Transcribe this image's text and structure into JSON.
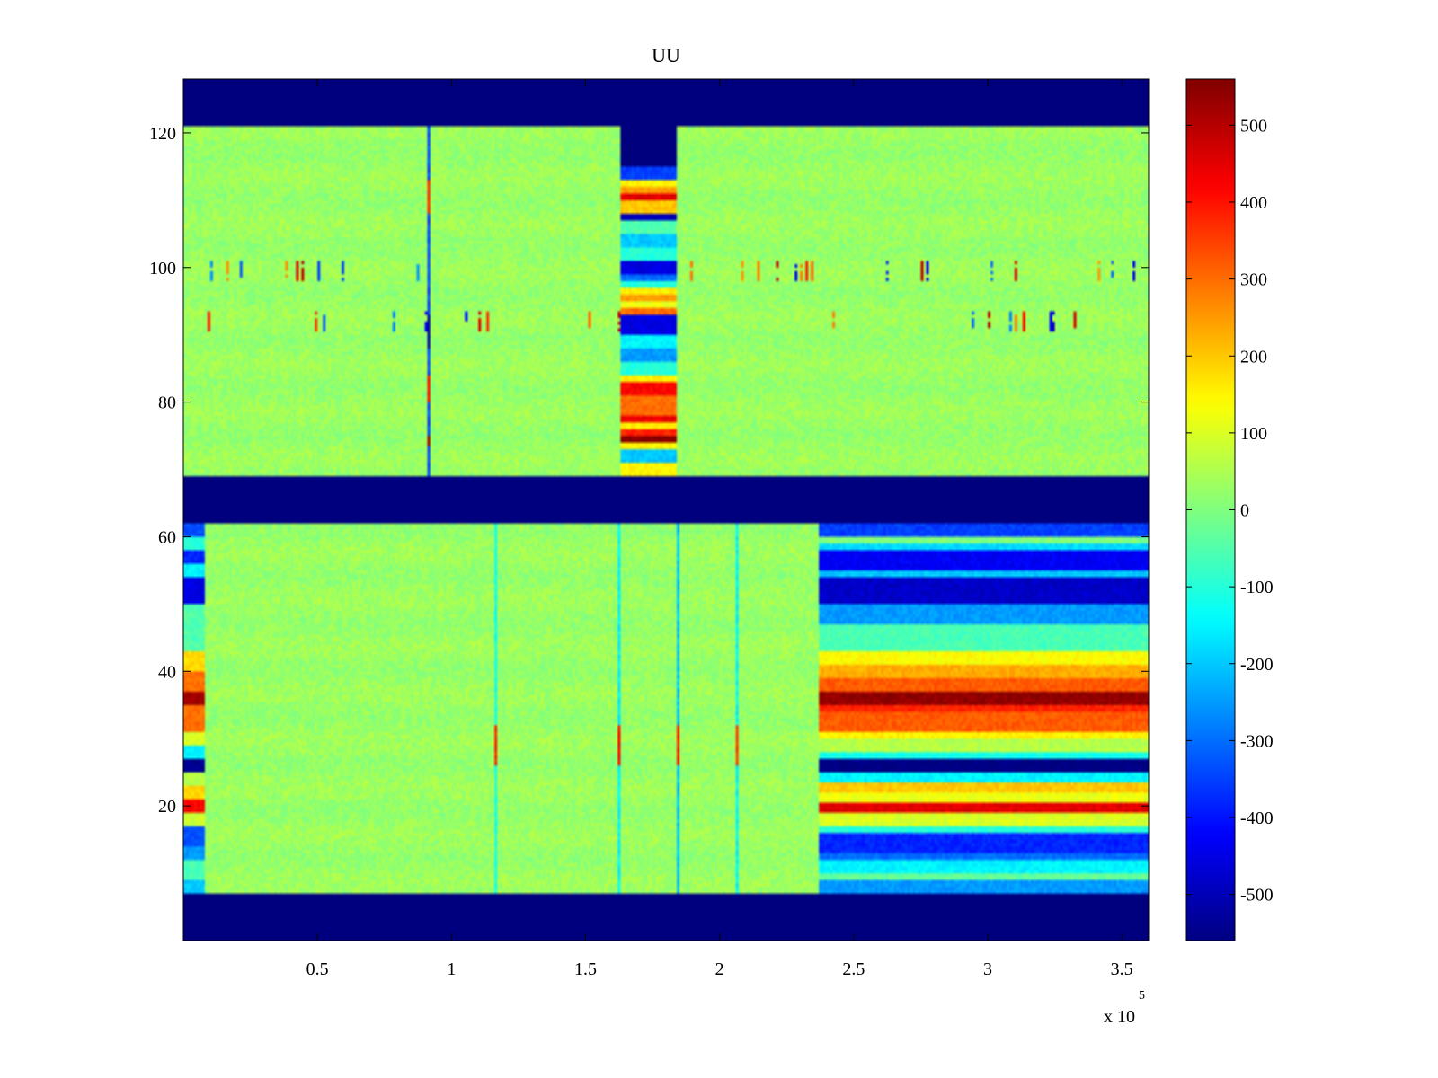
{
  "chart_data": {
    "type": "heatmap",
    "title": "UU",
    "xlabel": "",
    "ylabel": "",
    "x_multiplier_label": "x 10",
    "x_multiplier_exponent": "5",
    "xlim": [
      0,
      360000
    ],
    "ylim": [
      0,
      128
    ],
    "x_ticks": [
      {
        "value": 50000,
        "label": "0.5"
      },
      {
        "value": 100000,
        "label": "1"
      },
      {
        "value": 150000,
        "label": "1.5"
      },
      {
        "value": 200000,
        "label": "2"
      },
      {
        "value": 250000,
        "label": "2.5"
      },
      {
        "value": 300000,
        "label": "3"
      },
      {
        "value": 350000,
        "label": "3.5"
      }
    ],
    "y_ticks": [
      {
        "value": 20,
        "label": "20"
      },
      {
        "value": 40,
        "label": "40"
      },
      {
        "value": 60,
        "label": "60"
      },
      {
        "value": 80,
        "label": "80"
      },
      {
        "value": 100,
        "label": "100"
      },
      {
        "value": 120,
        "label": "120"
      }
    ],
    "colormap": "jet",
    "clim": [
      -560,
      560
    ],
    "colorbar_ticks": [
      {
        "value": 500,
        "label": "500"
      },
      {
        "value": 400,
        "label": "400"
      },
      {
        "value": 300,
        "label": "300"
      },
      {
        "value": 200,
        "label": "200"
      },
      {
        "value": 100,
        "label": "100"
      },
      {
        "value": 0,
        "label": "0"
      },
      {
        "value": -100,
        "label": "-100"
      },
      {
        "value": -200,
        "label": "-200"
      },
      {
        "value": -300,
        "label": "-300"
      },
      {
        "value": -400,
        "label": "-400"
      },
      {
        "value": -500,
        "label": "-500"
      }
    ],
    "background_value": 30,
    "masked_value": -560,
    "masked_rows": [
      [
        0,
        7
      ],
      [
        62,
        69
      ],
      [
        121,
        128
      ]
    ],
    "masked_blocks": [
      {
        "x": [
          163000,
          184000
        ],
        "y": [
          115,
          121
        ]
      }
    ],
    "striped_regions": [
      {
        "x": [
          0,
          8000
        ],
        "rows": [
          {
            "y": [
              7,
              9
            ],
            "value": -200
          },
          {
            "y": [
              9,
              12
            ],
            "value": -60
          },
          {
            "y": [
              12,
              14
            ],
            "value": -250
          },
          {
            "y": [
              14,
              17
            ],
            "value": -330
          },
          {
            "y": [
              17,
              19
            ],
            "value": 80
          },
          {
            "y": [
              19,
              21
            ],
            "value": 420
          },
          {
            "y": [
              21,
              23
            ],
            "value": 180
          },
          {
            "y": [
              23,
              25
            ],
            "value": 60
          },
          {
            "y": [
              25,
              27
            ],
            "value": -540
          },
          {
            "y": [
              27,
              29
            ],
            "value": -150
          },
          {
            "y": [
              29,
              31
            ],
            "value": 100
          },
          {
            "y": [
              31,
              35
            ],
            "value": 300
          },
          {
            "y": [
              35,
              37
            ],
            "value": 520
          },
          {
            "y": [
              37,
              40
            ],
            "value": 300
          },
          {
            "y": [
              40,
              43
            ],
            "value": 180
          },
          {
            "y": [
              43,
              50
            ],
            "value": -50
          },
          {
            "y": [
              50,
              54
            ],
            "value": -450
          },
          {
            "y": [
              54,
              56
            ],
            "value": -150
          },
          {
            "y": [
              56,
              58
            ],
            "value": -380
          },
          {
            "y": [
              58,
              60
            ],
            "value": -100
          },
          {
            "y": [
              60,
              62
            ],
            "value": -330
          }
        ]
      },
      {
        "x": [
          237000,
          360000
        ],
        "rows": [
          {
            "y": [
              7,
              9
            ],
            "value": -250
          },
          {
            "y": [
              9,
              10
            ],
            "value": -30
          },
          {
            "y": [
              10,
              12
            ],
            "value": -150
          },
          {
            "y": [
              12,
              13
            ],
            "value": -300
          },
          {
            "y": [
              13,
              16
            ],
            "value": -380
          },
          {
            "y": [
              16,
              17
            ],
            "value": -100
          },
          {
            "y": [
              17,
              19
            ],
            "value": 100
          },
          {
            "y": [
              19,
              20.5
            ],
            "value": 450
          },
          {
            "y": [
              20.5,
              22
            ],
            "value": 120
          },
          {
            "y": [
              22,
              23.5
            ],
            "value": 200
          },
          {
            "y": [
              23.5,
              25
            ],
            "value": -150
          },
          {
            "y": [
              25,
              27
            ],
            "value": -560
          },
          {
            "y": [
              27,
              28
            ],
            "value": -120
          },
          {
            "y": [
              28,
              30
            ],
            "value": 60
          },
          {
            "y": [
              30,
              31
            ],
            "value": 150
          },
          {
            "y": [
              31,
              34
            ],
            "value": 320
          },
          {
            "y": [
              34,
              35
            ],
            "value": 380
          },
          {
            "y": [
              35,
              37
            ],
            "value": 540
          },
          {
            "y": [
              37,
              39
            ],
            "value": 320
          },
          {
            "y": [
              39,
              41
            ],
            "value": 230
          },
          {
            "y": [
              41,
              43
            ],
            "value": 140
          },
          {
            "y": [
              43,
              47
            ],
            "value": -60
          },
          {
            "y": [
              47,
              50
            ],
            "value": -250
          },
          {
            "y": [
              50,
              54
            ],
            "value": -480
          },
          {
            "y": [
              54,
              55
            ],
            "value": -200
          },
          {
            "y": [
              55,
              58
            ],
            "value": -430
          },
          {
            "y": [
              58,
              59
            ],
            "value": -180
          },
          {
            "y": [
              59,
              60
            ],
            "value": 0
          },
          {
            "y": [
              60,
              62
            ],
            "value": -350
          }
        ]
      },
      {
        "x": [
          163000,
          184000
        ],
        "rows": [
          {
            "y": [
              69,
              71
            ],
            "value": 150
          },
          {
            "y": [
              71,
              73
            ],
            "value": -200
          },
          {
            "y": [
              73,
              74
            ],
            "value": 150
          },
          {
            "y": [
              74,
              75
            ],
            "value": 550
          },
          {
            "y": [
              75,
              76
            ],
            "value": 380
          },
          {
            "y": [
              76,
              77
            ],
            "value": 160
          },
          {
            "y": [
              77,
              78
            ],
            "value": 440
          },
          {
            "y": [
              78,
              81
            ],
            "value": 300
          },
          {
            "y": [
              81,
              83
            ],
            "value": 420
          },
          {
            "y": [
              83,
              84
            ],
            "value": 150
          },
          {
            "y": [
              84,
              86
            ],
            "value": -100
          },
          {
            "y": [
              86,
              88
            ],
            "value": -250
          },
          {
            "y": [
              88,
              90
            ],
            "value": -150
          },
          {
            "y": [
              90,
              93
            ],
            "value": -450
          },
          {
            "y": [
              93,
              94
            ],
            "value": 300
          },
          {
            "y": [
              94,
              95
            ],
            "value": 120
          },
          {
            "y": [
              95,
              96
            ],
            "value": 250
          },
          {
            "y": [
              96,
              97
            ],
            "value": 150
          },
          {
            "y": [
              97,
              98
            ],
            "value": -100
          },
          {
            "y": [
              98,
              99
            ],
            "value": -300
          },
          {
            "y": [
              99,
              101
            ],
            "value": -450
          },
          {
            "y": [
              101,
              103
            ],
            "value": -100
          },
          {
            "y": [
              103,
              105
            ],
            "value": -200
          },
          {
            "y": [
              105,
              107
            ],
            "value": -50
          },
          {
            "y": [
              107,
              108
            ],
            "value": -500
          },
          {
            "y": [
              108,
              110
            ],
            "value": 200
          },
          {
            "y": [
              110,
              111
            ],
            "value": 450
          },
          {
            "y": [
              111,
              112
            ],
            "value": 250
          },
          {
            "y": [
              112,
              113
            ],
            "value": 150
          },
          {
            "y": [
              113,
              115
            ],
            "value": -350
          }
        ]
      }
    ],
    "vertical_lines": [
      {
        "x": 91000,
        "y": [
          69,
          121
        ],
        "value": -350
      },
      {
        "x": 116000,
        "y": [
          7,
          62
        ],
        "value": -120
      },
      {
        "x": 162500,
        "y": [
          7,
          62
        ],
        "value": -150
      },
      {
        "x": 184500,
        "y": [
          7,
          62
        ],
        "value": -200
      },
      {
        "x": 206000,
        "y": [
          7,
          62
        ],
        "value": -150
      }
    ],
    "spikes": [
      {
        "x": 91000,
        "y": [
          73.5,
          75
        ],
        "value": 520
      },
      {
        "x": 91000,
        "y": [
          80,
          84
        ],
        "value": 420
      },
      {
        "x": 91000,
        "y": [
          108,
          113
        ],
        "value": 380
      },
      {
        "x": 91000,
        "y": [
          88,
          93
        ],
        "value": -520
      },
      {
        "x": 116000,
        "y": [
          26,
          32
        ],
        "value": 380
      },
      {
        "x": 162500,
        "y": [
          26,
          32
        ],
        "value": 420
      },
      {
        "x": 184500,
        "y": [
          26,
          32
        ],
        "value": 380
      },
      {
        "x": 206000,
        "y": [
          26,
          32
        ],
        "value": 360
      }
    ],
    "speckle_rows": [
      {
        "y": [
          98,
          101
        ],
        "density": 0.06
      },
      {
        "y": [
          90.5,
          93.5
        ],
        "density": 0.045
      }
    ]
  }
}
